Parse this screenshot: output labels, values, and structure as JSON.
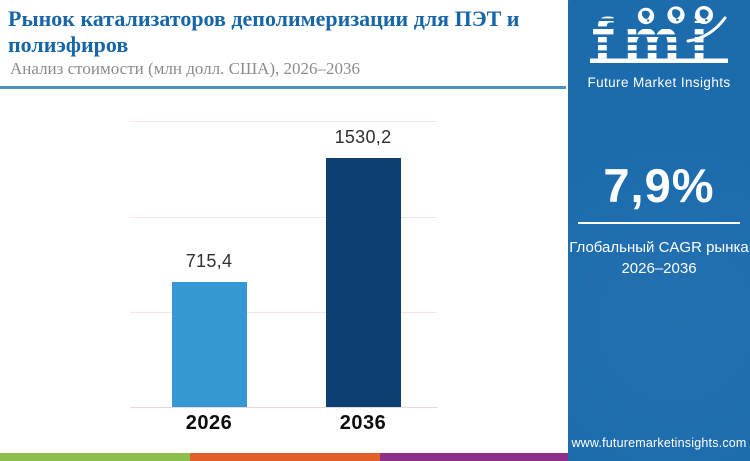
{
  "header": {
    "title": "Рынок катализаторов деполимеризации для ПЭТ и полиэфиров",
    "subtitle": "Анализ стоимости (млн долл. США), 2026–2036"
  },
  "chart_data": {
    "type": "bar",
    "categories": [
      "2026",
      "2036"
    ],
    "values": [
      715.4,
      1530.2
    ],
    "value_labels": [
      "715,4",
      "1530,2"
    ],
    "title": "Рынок катализаторов деполимеризации для ПЭТ и полиэфиров",
    "xlabel": "",
    "ylabel": "млн долл. США",
    "ylim": [
      0,
      1800
    ],
    "grid": true,
    "legend": false,
    "bar_colors": [
      "#3697D3",
      "#0D3E74"
    ]
  },
  "sidebar": {
    "bg_color": "#1B6BAD",
    "logo": {
      "text": "fmi",
      "tagline": "Future Market Insights"
    },
    "cagr": {
      "value": "7,9%",
      "label_line1": "Глобальный CAGR рынка",
      "label_line2": "2026–2036"
    },
    "website": "www.futuremarketinsights.com"
  },
  "footer_stripe_colors": [
    "#8CBF4A",
    "#E25F2A",
    "#8E2F8A"
  ],
  "accent_colors": {
    "title_blue": "#1766A8",
    "divider_blue": "#4E8FC0",
    "gridline_pink": "#F5E6E6"
  }
}
